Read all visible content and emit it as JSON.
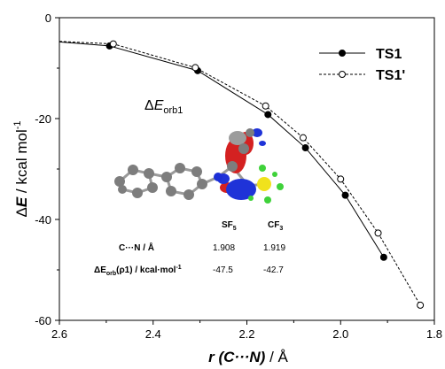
{
  "chart_data": {
    "type": "line",
    "xlabel": {
      "main": "r (C···N)",
      "unit": " / Å"
    },
    "ylabel": {
      "delta": "Δ",
      "main": "E",
      "unit": " / kcal mol",
      "sup": "-1"
    },
    "xlim": [
      2.6,
      1.8
    ],
    "ylim": [
      -60,
      0
    ],
    "xticks": [
      2.6,
      2.4,
      2.2,
      2.0,
      1.8
    ],
    "xtick_labels": [
      "2.6",
      "2.4",
      "2.2",
      "2.0",
      "1.8"
    ],
    "yticks": [
      0,
      -20,
      -40,
      -60
    ],
    "ytick_labels": [
      "0",
      "-20",
      "-40",
      "-60"
    ],
    "legend_position": "top-right",
    "series": [
      {
        "name": "TS1",
        "style": "solid",
        "marker": "filled-circle",
        "color": "#000000",
        "points": [
          [
            2.6,
            -4.8
          ],
          [
            2.493,
            -5.6
          ],
          [
            2.305,
            -10.5
          ],
          [
            2.155,
            -19.2
          ],
          [
            2.075,
            -25.8
          ],
          [
            1.99,
            -35.2
          ],
          [
            1.908,
            -47.5
          ]
        ]
      },
      {
        "name": "TS1'",
        "style": "dashed",
        "marker": "open-circle",
        "color": "#000000",
        "points": [
          [
            2.6,
            -4.7
          ],
          [
            2.485,
            -5.2
          ],
          [
            2.31,
            -9.9
          ],
          [
            2.16,
            -17.5
          ],
          [
            2.08,
            -23.8
          ],
          [
            2.0,
            -32.0
          ],
          [
            1.92,
            -42.7
          ],
          [
            1.83,
            -57.0
          ]
        ]
      }
    ],
    "annotation": {
      "delta": "Δ",
      "main": "E",
      "sub": "orb1"
    },
    "inset_table": {
      "columns": [
        {
          "base": "SF",
          "sub": "5"
        },
        {
          "base": "CF",
          "sub": "3"
        }
      ],
      "row1": {
        "label": "C···N / Å",
        "values": [
          "1.908",
          "1.919"
        ]
      },
      "row2": {
        "label_parts": [
          "ΔE",
          "orb",
          "(ρ1) / kcal·mol",
          "-1"
        ],
        "values": [
          "-47.5",
          "-42.7"
        ]
      }
    },
    "colors": {
      "carbon": "#7d7d7d",
      "nitrogen": "#1c2fd6",
      "sulfur": "#f0e21c",
      "fluorine": "#3fd23a",
      "lobe_red": "#d42121",
      "lobe_blue": "#1f33d8"
    }
  }
}
